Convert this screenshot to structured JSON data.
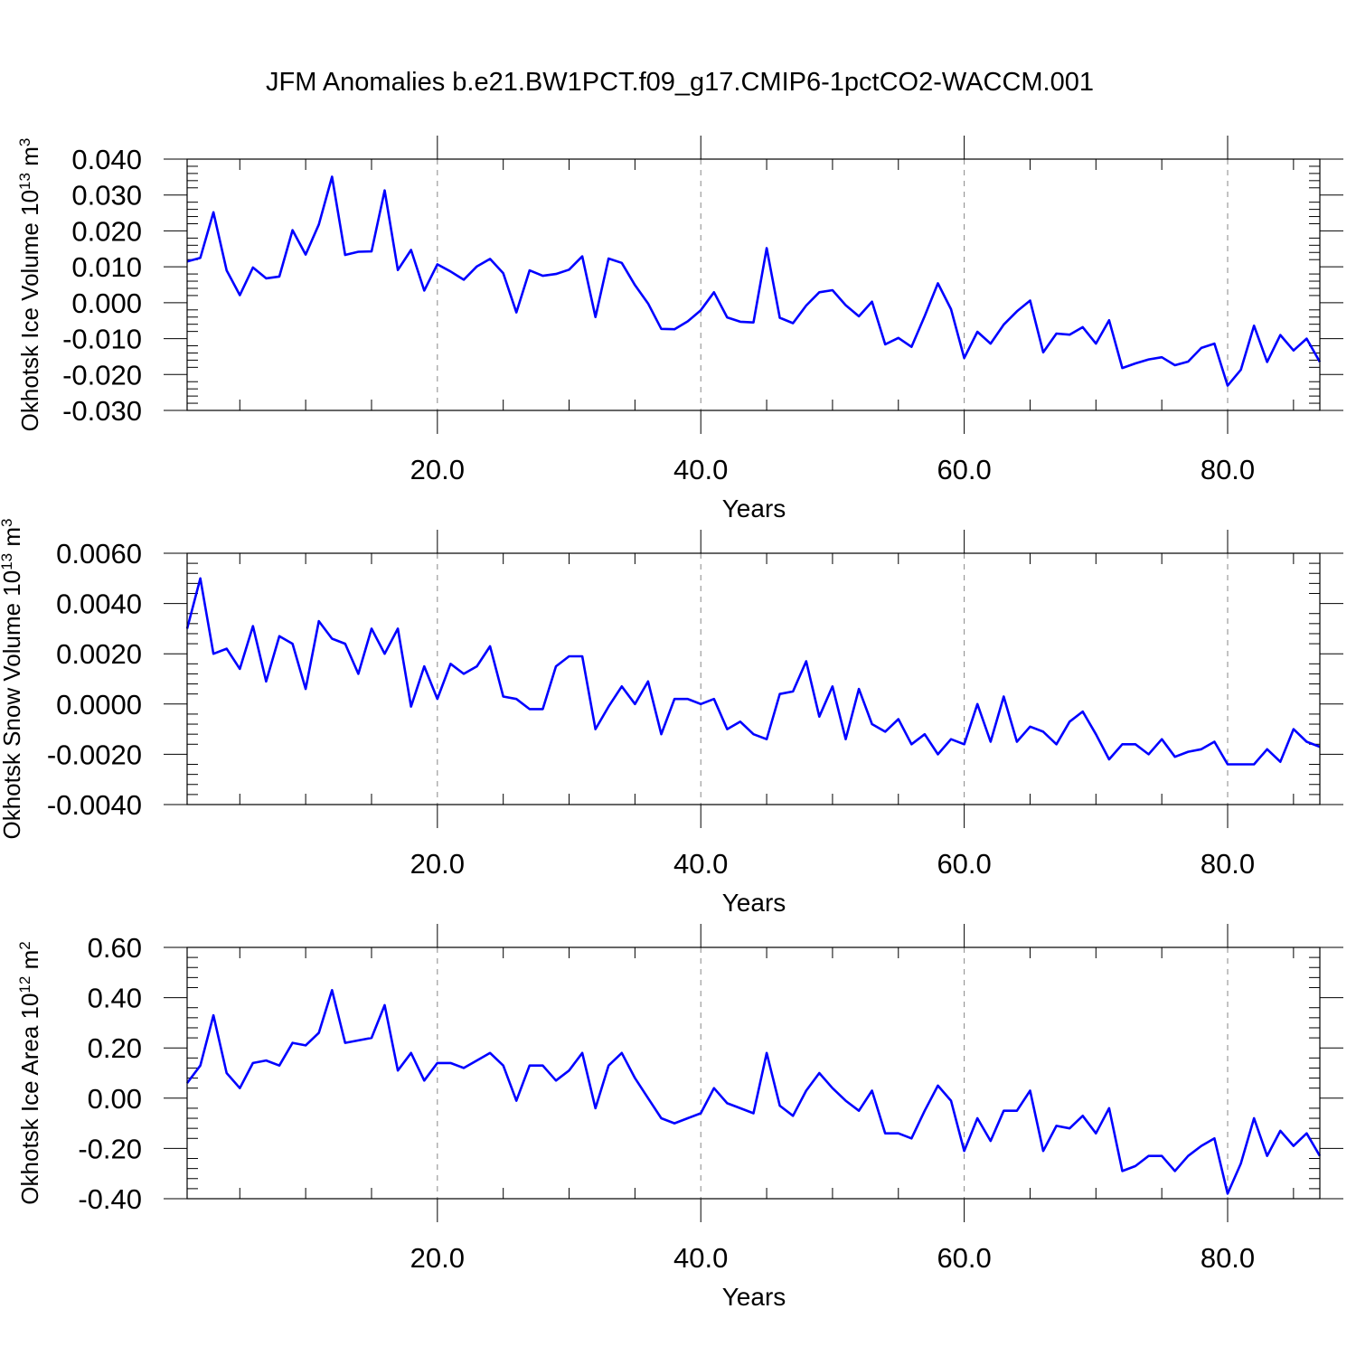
{
  "title": "JFM Anomalies b.e21.BW1PCT.f09_g17.CMIP6-1pctCO2-WACCM.001",
  "line_color": "#0000ff",
  "chart_data": [
    {
      "type": "line",
      "ylabel_main": "Okhotsk Ice Volume 10",
      "ylabel_exp": "13",
      "ylabel_unit": " m",
      "ylabel_unit_exp": "3",
      "xlabel": "Years",
      "xlim": [
        1,
        87
      ],
      "ylim": [
        -0.03,
        0.04
      ],
      "xticks": [
        20,
        40,
        60,
        80
      ],
      "xtick_labels": [
        "20.0",
        "40.0",
        "60.0",
        "80.0"
      ],
      "yticks": [
        -0.03,
        -0.02,
        -0.01,
        0.0,
        0.01,
        0.02,
        0.03,
        0.04
      ],
      "ytick_labels": [
        "-0.030",
        "-0.020",
        "-0.010",
        "0.000",
        "0.010",
        "0.020",
        "0.030",
        "0.040"
      ],
      "x_start": 1,
      "series": [
        {
          "values": [
            0.0115,
            0.0125,
            0.0252,
            0.009,
            0.0021,
            0.0098,
            0.0068,
            0.0073,
            0.0202,
            0.0134,
            0.0218,
            0.0351,
            0.0133,
            0.0142,
            0.0143,
            0.0313,
            0.0091,
            0.0147,
            0.0034,
            0.0107,
            0.0087,
            0.0064,
            0.0101,
            0.0122,
            0.0082,
            -0.0027,
            0.009,
            0.0075,
            0.008,
            0.0092,
            0.0129,
            -0.004,
            0.0123,
            0.0111,
            0.0049,
            -0.0002,
            -0.0073,
            -0.0074,
            -0.0052,
            -0.0021,
            0.0029,
            -0.0041,
            -0.0053,
            -0.0055,
            0.0152,
            -0.0042,
            -0.0057,
            -0.0008,
            0.0029,
            0.0035,
            -0.0007,
            -0.0038,
            0.0003,
            -0.0116,
            -0.0098,
            -0.0123,
            -0.0037,
            0.0054,
            -0.0018,
            -0.0154,
            -0.0081,
            -0.0114,
            -0.0061,
            -0.0024,
            0.0006,
            -0.0138,
            -0.0086,
            -0.0089,
            -0.0068,
            -0.0114,
            -0.0049,
            -0.0182,
            -0.0169,
            -0.0158,
            -0.0152,
            -0.0174,
            -0.0164,
            -0.0126,
            -0.0114,
            -0.0231,
            -0.0187,
            -0.0064,
            -0.0165,
            -0.009,
            -0.0133,
            -0.01,
            -0.0165
          ]
        }
      ]
    },
    {
      "type": "line",
      "ylabel_main": "Okhotsk Snow Volume 10",
      "ylabel_exp": "13",
      "ylabel_unit": " m",
      "ylabel_unit_exp": "3",
      "xlabel": "Years",
      "xlim": [
        1,
        87
      ],
      "ylim": [
        -0.004,
        0.006
      ],
      "xticks": [
        20,
        40,
        60,
        80
      ],
      "xtick_labels": [
        "20.0",
        "40.0",
        "60.0",
        "80.0"
      ],
      "yticks": [
        -0.004,
        -0.002,
        0.0,
        0.002,
        0.004,
        0.006
      ],
      "ytick_labels": [
        "-0.0040",
        "-0.0020",
        "0.0000",
        "0.0020",
        "0.0040",
        "0.0060"
      ],
      "x_start": 1,
      "series": [
        {
          "values": [
            0.003,
            0.005,
            0.002,
            0.0022,
            0.0014,
            0.0031,
            0.0009,
            0.0027,
            0.0024,
            0.0006,
            0.0033,
            0.0026,
            0.0024,
            0.0012,
            0.003,
            0.002,
            0.003,
            -0.0001,
            0.0015,
            0.0002,
            0.0016,
            0.0012,
            0.0015,
            0.0023,
            0.0003,
            0.0002,
            -0.0002,
            -0.0002,
            0.0015,
            0.0019,
            0.0019,
            -0.001,
            -0.0001,
            0.0007,
            0.0,
            0.0009,
            -0.0012,
            0.0002,
            0.0002,
            0.0,
            0.0002,
            -0.001,
            -0.0007,
            -0.0012,
            -0.0014,
            0.0004,
            0.0005,
            0.0017,
            -0.0005,
            0.0007,
            -0.0014,
            0.0006,
            -0.0008,
            -0.0011,
            -0.0006,
            -0.0016,
            -0.0012,
            -0.002,
            -0.0014,
            -0.0016,
            0.0,
            -0.0015,
            0.0003,
            -0.0015,
            -0.0009,
            -0.0011,
            -0.0016,
            -0.0007,
            -0.0003,
            -0.0012,
            -0.0022,
            -0.0016,
            -0.0016,
            -0.002,
            -0.0014,
            -0.0021,
            -0.0019,
            -0.0018,
            -0.0015,
            -0.0024,
            -0.0024,
            -0.0024,
            -0.0018,
            -0.0023,
            -0.001,
            -0.0015,
            -0.0017
          ]
        }
      ]
    },
    {
      "type": "line",
      "ylabel_main": "Okhotsk Ice Area 10",
      "ylabel_exp": "12",
      "ylabel_unit": " m",
      "ylabel_unit_exp": "2",
      "xlabel": "Years",
      "xlim": [
        1,
        87
      ],
      "ylim": [
        -0.4,
        0.6
      ],
      "xticks": [
        20,
        40,
        60,
        80
      ],
      "xtick_labels": [
        "20.0",
        "40.0",
        "60.0",
        "80.0"
      ],
      "yticks": [
        -0.4,
        -0.2,
        0.0,
        0.2,
        0.4,
        0.6
      ],
      "ytick_labels": [
        "-0.40",
        "-0.20",
        "0.00",
        "0.20",
        "0.40",
        "0.60"
      ],
      "x_start": 1,
      "series": [
        {
          "values": [
            0.06,
            0.13,
            0.33,
            0.1,
            0.04,
            0.14,
            0.15,
            0.13,
            0.22,
            0.21,
            0.26,
            0.43,
            0.22,
            0.23,
            0.24,
            0.37,
            0.11,
            0.18,
            0.07,
            0.14,
            0.14,
            0.12,
            0.15,
            0.18,
            0.13,
            -0.01,
            0.13,
            0.13,
            0.07,
            0.11,
            0.18,
            -0.04,
            0.13,
            0.18,
            0.08,
            0.0,
            -0.08,
            -0.1,
            -0.08,
            -0.06,
            0.04,
            -0.02,
            -0.04,
            -0.06,
            0.18,
            -0.03,
            -0.07,
            0.03,
            0.1,
            0.04,
            -0.01,
            -0.05,
            0.03,
            -0.14,
            -0.14,
            -0.16,
            -0.05,
            0.05,
            -0.01,
            -0.21,
            -0.08,
            -0.17,
            -0.05,
            -0.05,
            0.03,
            -0.21,
            -0.11,
            -0.12,
            -0.07,
            -0.14,
            -0.04,
            -0.29,
            -0.27,
            -0.23,
            -0.23,
            -0.29,
            -0.23,
            -0.19,
            -0.16,
            -0.38,
            -0.26,
            -0.08,
            -0.23,
            -0.13,
            -0.19,
            -0.14,
            -0.23
          ]
        }
      ]
    }
  ]
}
